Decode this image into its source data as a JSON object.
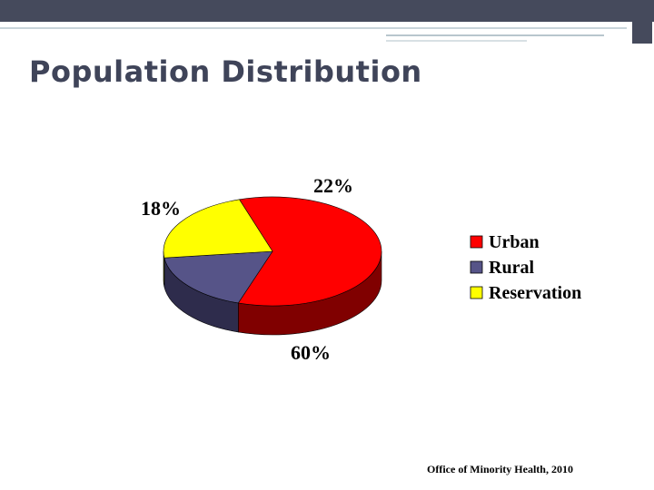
{
  "slide": {
    "title": "Population Distribution",
    "source": "Office of Minority Health, 2010"
  },
  "colors": {
    "header": "#454a5c",
    "accent": "#5c7c8a",
    "urban": "#ff0000",
    "urban_side": "#800000",
    "rural": "#565488",
    "rural_side": "#2e2c4c",
    "reservation": "#ffff00",
    "reservation_side": "#8a8a00"
  },
  "chart_data": {
    "type": "pie",
    "categories": [
      "Urban",
      "Rural",
      "Reservation"
    ],
    "values": [
      60,
      18,
      22
    ],
    "labels": [
      "60%",
      "18%",
      "22%"
    ],
    "legend_position": "right",
    "style": "3d"
  }
}
